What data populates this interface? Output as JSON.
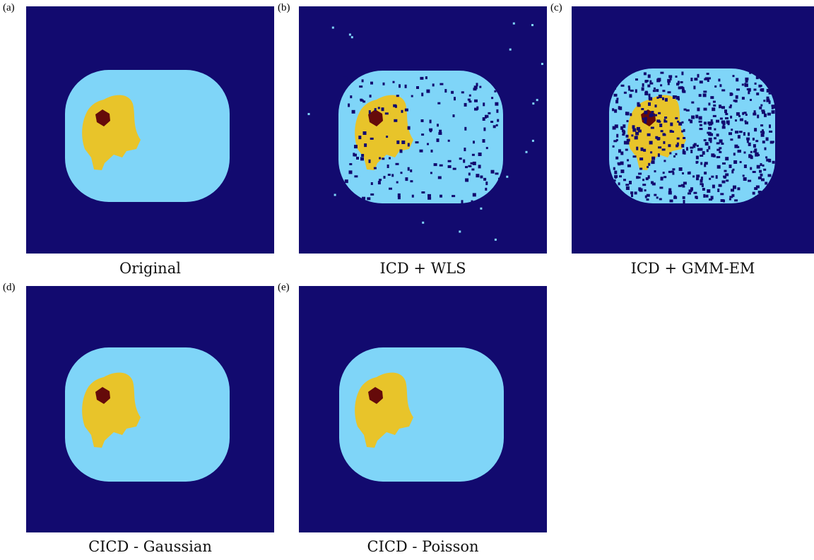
{
  "figure": {
    "panels": [
      {
        "id": "a",
        "label": "(a)",
        "caption": "Original",
        "noise": "none"
      },
      {
        "id": "b",
        "label": "(b)",
        "caption": "ICD + WLS",
        "noise": "light"
      },
      {
        "id": "c",
        "label": "(c)",
        "caption": "ICD + GMM-EM",
        "noise": "heavy"
      },
      {
        "id": "d",
        "label": "(d)",
        "caption": "CICD - Gaussian",
        "noise": "none"
      },
      {
        "id": "e",
        "label": "(e)",
        "caption": "CICD - Poisson",
        "noise": "none"
      }
    ],
    "colors": {
      "background": "#120a6f",
      "body": "#7fd5f8",
      "organ": "#e8c42a",
      "lesion": "#650a0a"
    }
  }
}
